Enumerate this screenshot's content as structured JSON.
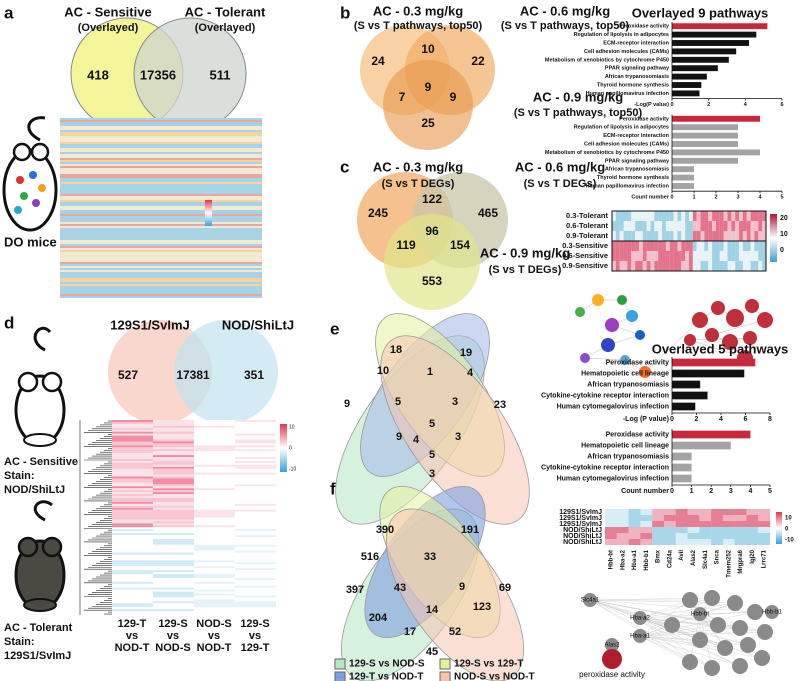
{
  "panel_labels": [
    "a",
    "b",
    "c",
    "d",
    "e",
    "f"
  ],
  "a": {
    "venn": {
      "sets": [
        {
          "title": "AC - Sensitive",
          "subtitle": "(Overlayed)"
        },
        {
          "title": "AC - Tolerant",
          "subtitle": "(Overlayed)"
        }
      ],
      "counts": [
        418,
        17356,
        511
      ]
    },
    "mouse_label": "DO mice"
  },
  "b": {
    "venn": {
      "sets": [
        {
          "title": "AC - 0.3 mg/kg",
          "subtitle": "(S vs T pathways, top50)"
        },
        {
          "title": "AC - 0.6 mg/kg",
          "subtitle": "(S vs T pathways, top50)"
        },
        {
          "title": "AC - 0.9 mg/kg",
          "subtitle": "(S vs T pathways, top50)"
        }
      ],
      "counts": [
        24,
        10,
        22,
        7,
        9,
        9,
        25
      ]
    },
    "pathways": {
      "title": "Overlayed 9 pathways",
      "categories": [
        "Peroxidase activity",
        "Regulation of lipolysis in adipocytes",
        "ECM-receptor interaction",
        "Cell adhesion molecules (CAMs)",
        "Metabolism of xenobiotics by cytochrome P450",
        "PPAR signaling pathway",
        "African trypanosomiasis",
        "Thyroid hormone synthesis",
        "Human papillomavirus infection"
      ],
      "colors": {
        "highlight": "#c8283c",
        "log_p": "#111111",
        "count": "#a3a3a3"
      },
      "log_p": {
        "label": "-Log(P value)",
        "values": [
          5.2,
          4.6,
          4.2,
          3.5,
          3.1,
          2.5,
          1.9,
          1.6,
          1.5
        ],
        "lim": [
          0,
          6
        ],
        "ticks": [
          0,
          2,
          4,
          6
        ]
      },
      "count": {
        "label": "Count number",
        "values": [
          4,
          3,
          3,
          3,
          4,
          3,
          1,
          1,
          1
        ],
        "lim": [
          0,
          5
        ],
        "ticks": [
          0,
          1,
          2,
          3,
          4,
          5
        ]
      }
    }
  },
  "c": {
    "venn": {
      "sets": [
        {
          "title": "AC - 0.3 mg/kg",
          "subtitle": "(S vs T DEGs)"
        },
        {
          "title": "AC - 0.6 mg/kg",
          "subtitle": "(S vs T DEGs)"
        },
        {
          "title": "AC - 0.9 mg/kg",
          "subtitle": "(S vs T DEGs)"
        }
      ],
      "counts": [
        245,
        122,
        465,
        119,
        96,
        154,
        553
      ]
    },
    "heatmap": {
      "rows": [
        "0.3-Tolerant",
        "0.6-Tolerant",
        "0.9-Tolerant",
        "0.3-Sensitive",
        "0.6-Sensitive",
        "0.9-Sensitive"
      ],
      "colorbar_ticks": [
        20,
        10,
        0
      ]
    }
  },
  "d": {
    "venn": {
      "sets": [
        "129S1/SvImJ",
        "NOD/ShiLtJ"
      ],
      "counts": [
        527,
        17381,
        351
      ]
    },
    "sensitive": {
      "label": "AC - Sensitive",
      "stain": "Stain:",
      "strain": "NOD/ShiLtJ"
    },
    "tolerant": {
      "label": "AC - Tolerant",
      "stain": "Stain:",
      "strain": "129S1/SvImJ"
    },
    "heatmap": {
      "columns": [
        [
          "129-T",
          "vs",
          "NOD-T"
        ],
        [
          "129-S",
          "vs",
          "NOD-S"
        ],
        [
          "NOD-S",
          "vs",
          "NOD-T"
        ],
        [
          "129-S",
          "vs",
          "129-T"
        ]
      ],
      "colorbar_ticks": [
        10,
        0,
        -10
      ]
    }
  },
  "e": {
    "venn_counts": [
      18,
      19,
      10,
      1,
      4,
      9,
      5,
      3,
      23,
      9,
      4,
      5,
      3,
      5,
      3
    ],
    "pathways": {
      "title": "Overlayed 5 pathways",
      "categories": [
        "Peroxidase activity",
        "Hematopoietic cell lineage",
        "African trypanosomiasis",
        "Cytokine-cytokine receptor interaction",
        "Human cytomegalovirus infection"
      ],
      "colors": {
        "highlight": "#c8283c",
        "log_p": "#111111",
        "count": "#a3a3a3"
      },
      "log_p": {
        "label": "-Log (P value)",
        "values": [
          6.8,
          5.9,
          2.3,
          2.9,
          1.9
        ],
        "lim": [
          0,
          8
        ],
        "ticks": [
          0,
          2,
          4,
          6,
          8
        ]
      },
      "count": {
        "label": "Count number",
        "values": [
          4,
          3,
          1,
          1,
          1
        ],
        "lim": [
          0,
          5
        ],
        "ticks": [
          0,
          1,
          2,
          3,
          4,
          5
        ]
      }
    }
  },
  "f": {
    "venn_counts": [
      390,
      191,
      516,
      33,
      397,
      43,
      9,
      69,
      14,
      123,
      204,
      17,
      52,
      45
    ],
    "legend": [
      {
        "name": "129-S vs NOD-S",
        "color": "#b7e6c4"
      },
      {
        "name": "129-S vs 129-T",
        "color": "#e4f0a0"
      },
      {
        "name": "129-T vs NOD-T",
        "color": "#7f9fe0"
      },
      {
        "name": "NOD-S vs NOD-T",
        "color": "#f5c4b0"
      }
    ],
    "heatmap": {
      "rows": [
        "129S1/SvImJ",
        "129S1/SvImJ",
        "129S1/SvImJ",
        "NOD/ShiLtJ",
        "NOD/ShiLtJ",
        "NOD/ShiLtJ"
      ],
      "genes": [
        "Hbb-bt",
        "Hba-a2",
        "Hba-a1",
        "Hbb-b1",
        "Bmx",
        "Cd24a",
        "Avil",
        "Alas2",
        "Slc4a1",
        "Snca",
        "Tmem252",
        "Mrgpra6",
        "Igj20",
        "Lrrc71"
      ],
      "colorbar_ticks": [
        10,
        0,
        -10
      ]
    },
    "network": {
      "nodes": [
        "Slc4a1",
        "Hba-a2",
        "Hbb-bt",
        "Hba-a1",
        "Alas2",
        "peroxidase activity",
        "Hbb-b1"
      ]
    }
  }
}
